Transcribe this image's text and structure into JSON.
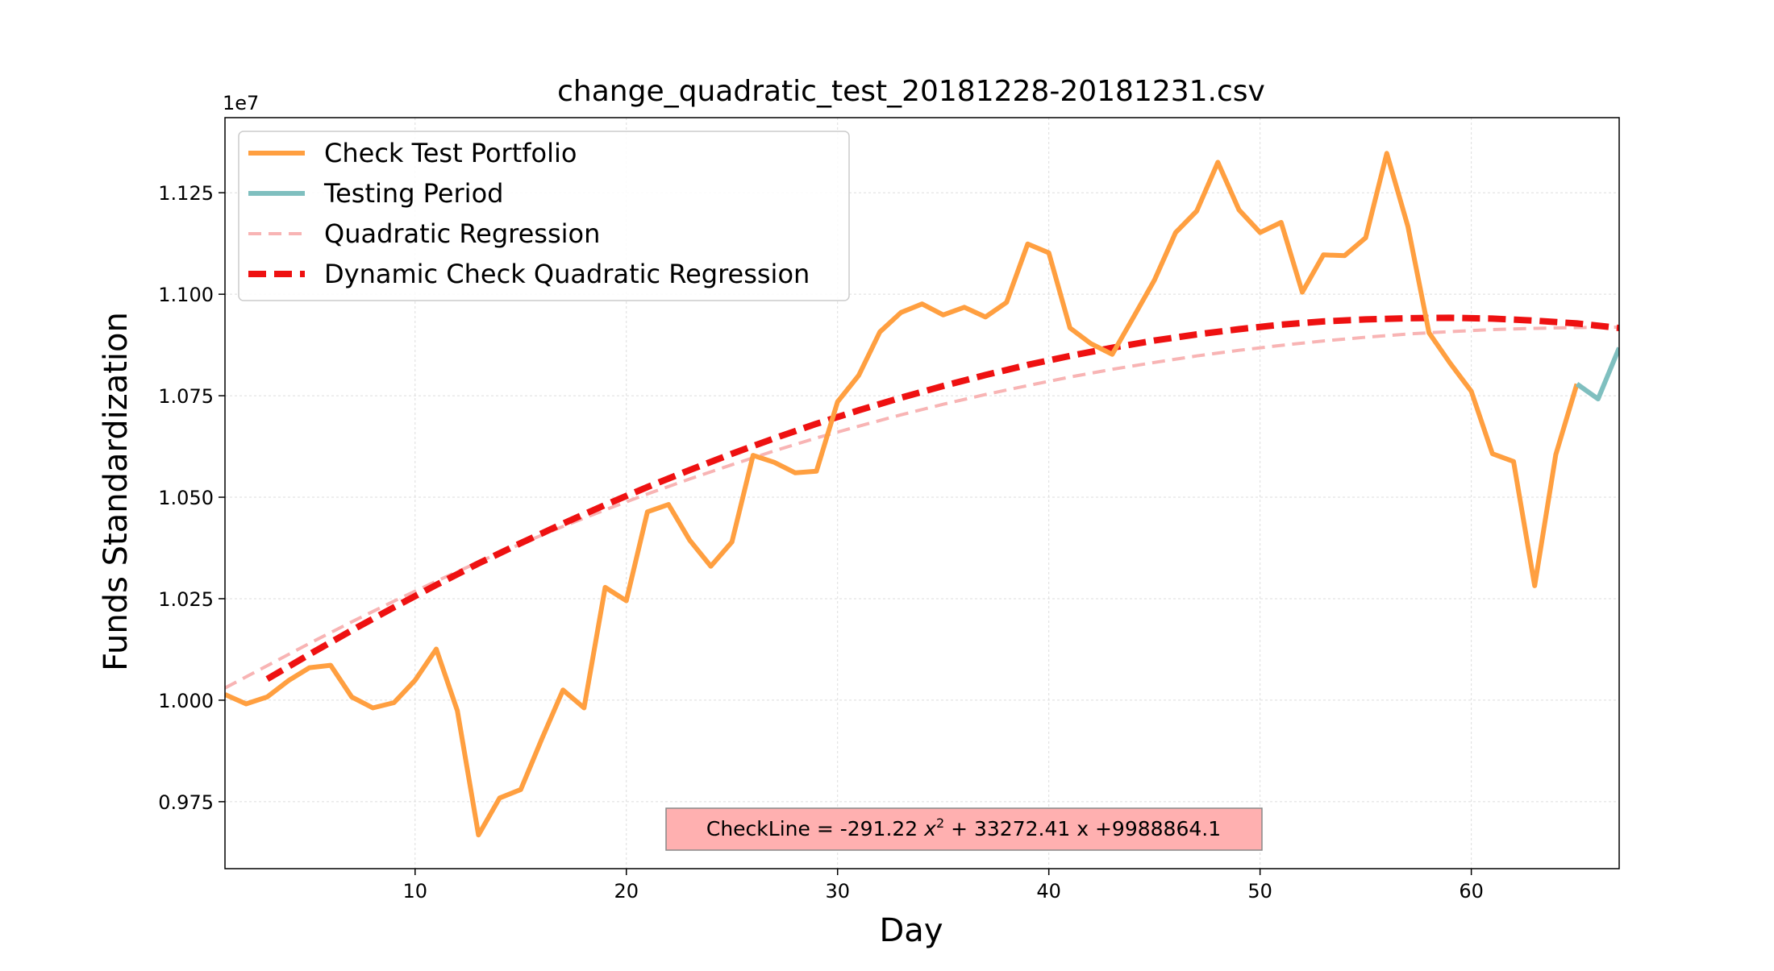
{
  "chart_data": {
    "type": "line",
    "title": "change_quadratic_test_20181228-20181231.csv",
    "xlabel": "Day",
    "ylabel": "Funds Standardization",
    "y_offset_label": "1e7",
    "xlim": [
      1,
      67
    ],
    "ylim": [
      0.9585,
      1.1435
    ],
    "x_ticks": [
      10,
      20,
      30,
      40,
      50,
      60
    ],
    "x_tick_labels": [
      "10",
      "20",
      "30",
      "40",
      "50",
      "60"
    ],
    "y_ticks": [
      0.975,
      1.0,
      1.025,
      1.05,
      1.075,
      1.1,
      1.125
    ],
    "y_tick_labels": [
      "0.975",
      "1.000",
      "1.025",
      "1.050",
      "1.075",
      "1.100",
      "1.125"
    ],
    "grid": true,
    "legend_position": "top-left",
    "annotation": "CheckLine = -291.22 x² + 33272.41 x +9988864.1",
    "annotation_parts": {
      "prefix": "CheckLine = -291.22 ",
      "var": "x",
      "sup": "2",
      "suffix": " + 33272.41 x +9988864.1"
    },
    "colors": {
      "check_portfolio": "#FF9F40",
      "testing_period": "#7FBFBF",
      "quadratic_regression": "#F8B4B4",
      "dynamic_regression": "#EE1111",
      "annotation_box": "#FFB0B0",
      "grid": "#DDDDDD"
    },
    "series": [
      {
        "name": "Check Test Portfolio",
        "style": "solid",
        "x": [
          1,
          2,
          3,
          4,
          5,
          6,
          7,
          8,
          9,
          10,
          11,
          12,
          13,
          14,
          15,
          16,
          17,
          18,
          19,
          20,
          21,
          22,
          23,
          24,
          25,
          26,
          27,
          28,
          29,
          30,
          31,
          32,
          33,
          34,
          35,
          36,
          37,
          38,
          39,
          40,
          41,
          42,
          43,
          44,
          45,
          46,
          47,
          48,
          49,
          50,
          51,
          52,
          53,
          54,
          55,
          56,
          57,
          58,
          59,
          60,
          61,
          62,
          63,
          64,
          65
        ],
        "y": [
          1.0014,
          0.9991,
          1.0008,
          1.0048,
          1.008,
          1.0086,
          1.0008,
          0.9981,
          0.9994,
          1.0049,
          1.0126,
          0.9974,
          0.9668,
          0.9759,
          0.978,
          0.9905,
          1.0025,
          0.9981,
          1.0278,
          1.0245,
          1.0464,
          1.0482,
          1.0394,
          1.033,
          1.039,
          1.0603,
          1.0586,
          1.056,
          1.0564,
          1.0735,
          1.08,
          1.0907,
          1.0955,
          1.0976,
          1.0949,
          1.0968,
          1.0944,
          1.098,
          1.1124,
          1.1102,
          1.0917,
          1.0878,
          1.0852,
          1.0943,
          1.1035,
          1.1152,
          1.1205,
          1.1325,
          1.1208,
          1.1152,
          1.1177,
          1.1005,
          1.1097,
          1.1095,
          1.1139,
          1.1347,
          1.1167,
          1.0905,
          1.083,
          1.0761,
          1.0607,
          1.0588,
          1.0282,
          1.0605,
          1.0779
        ]
      },
      {
        "name": "Testing Period",
        "style": "solid",
        "x": [
          65,
          66,
          67
        ],
        "y": [
          1.0779,
          1.0742,
          1.0868
        ]
      },
      {
        "name": "Quadratic Regression",
        "style": "dashed",
        "x": [
          1,
          3,
          5,
          7,
          9,
          11,
          13,
          15,
          17,
          19,
          21,
          23,
          25,
          27,
          29,
          31,
          33,
          35,
          37,
          39,
          41,
          43,
          45,
          47,
          49,
          51,
          53,
          55,
          57,
          59,
          61,
          63,
          65,
          67
        ],
        "y": [
          1.003,
          1.0085,
          1.014,
          1.0193,
          1.0244,
          1.0293,
          1.034,
          1.0385,
          1.0428,
          1.0469,
          1.0508,
          1.0545,
          1.058,
          1.0614,
          1.0646,
          1.0675,
          1.0703,
          1.0729,
          1.0753,
          1.0775,
          1.0796,
          1.0815,
          1.0832,
          1.0848,
          1.0862,
          1.0874,
          1.0885,
          1.0894,
          1.0902,
          1.0908,
          1.0913,
          1.0916,
          1.0918,
          1.0919
        ]
      },
      {
        "name": "Dynamic Check Quadratic Regression",
        "style": "dashed",
        "x": [
          3,
          5,
          7,
          9,
          11,
          13,
          15,
          17,
          19,
          21,
          23,
          25,
          27,
          29,
          31,
          33,
          35,
          37,
          39,
          41,
          43,
          45,
          47,
          49,
          51,
          53,
          55,
          57,
          59,
          61,
          63,
          65,
          67
        ],
        "y": [
          1.0052,
          1.0113,
          1.0172,
          1.0229,
          1.0284,
          1.0337,
          1.0387,
          1.0435,
          1.0481,
          1.0525,
          1.0567,
          1.0607,
          1.0645,
          1.0681,
          1.0714,
          1.0745,
          1.0774,
          1.0801,
          1.0826,
          1.0848,
          1.0868,
          1.0886,
          1.0901,
          1.0914,
          1.0925,
          1.0933,
          1.0938,
          1.0941,
          1.0942,
          1.094,
          1.0935,
          1.0928,
          1.0917
        ]
      }
    ]
  }
}
